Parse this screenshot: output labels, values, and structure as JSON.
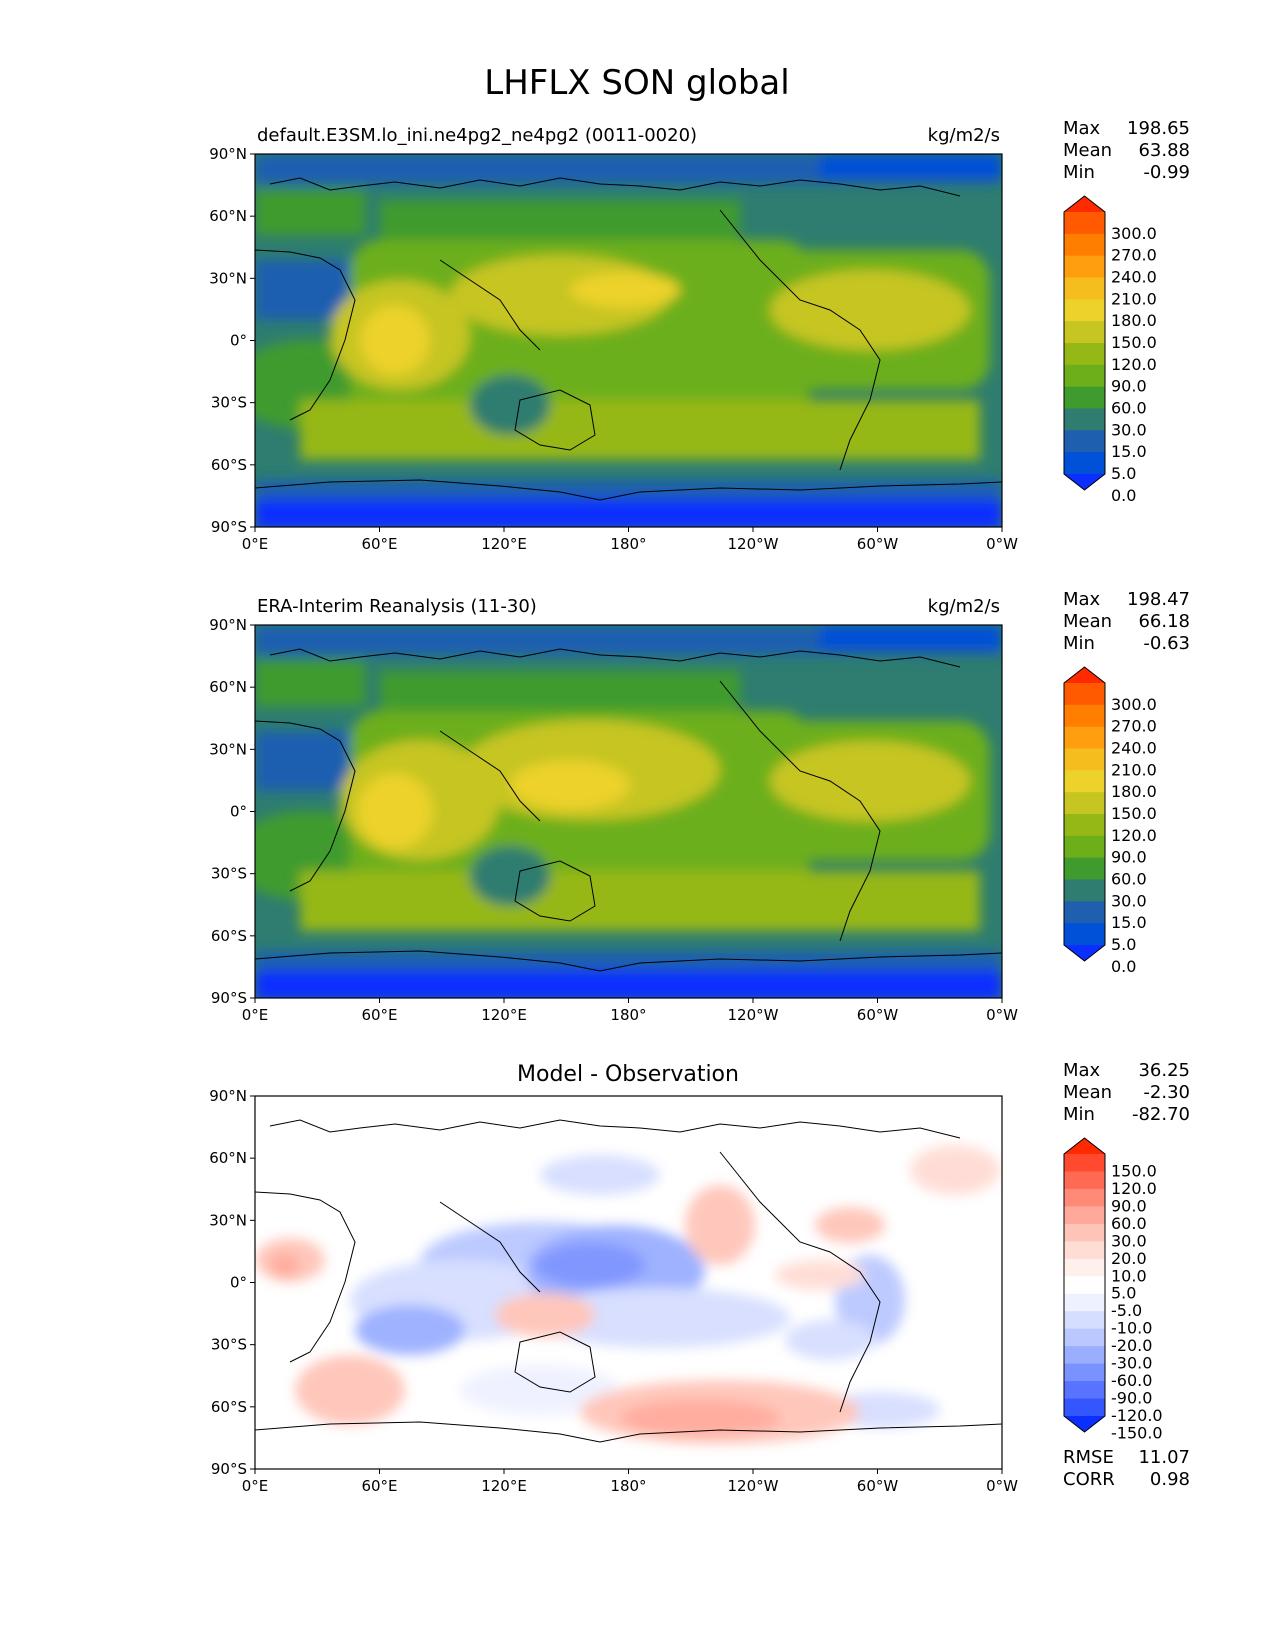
{
  "figure": {
    "title": "LHFLX SON global"
  },
  "chart_data": [
    {
      "type": "heatmap",
      "title": "default.E3SM.lo_ini.ne4pg2_ne4pg2 (0011-0020)",
      "units": "kg/m2/s",
      "x_ticks": [
        "0°E",
        "60°E",
        "120°E",
        "180°",
        "120°W",
        "60°W",
        "0°W"
      ],
      "y_ticks": [
        "90°N",
        "60°N",
        "30°N",
        "0°",
        "30°S",
        "60°S",
        "90°S"
      ],
      "xlim": [
        0,
        360
      ],
      "ylim": [
        -90,
        90
      ],
      "stats": [
        {
          "label": "Max",
          "value": "198.65"
        },
        {
          "label": "Mean",
          "value": "63.88"
        },
        {
          "label": "Min",
          "value": "-0.99"
        }
      ],
      "colorbar": {
        "labels": [
          "300.0",
          "270.0",
          "240.0",
          "210.0",
          "180.0",
          "150.0",
          "120.0",
          "90.0",
          "60.0",
          "30.0",
          "15.0",
          "5.0",
          "0.0"
        ],
        "colors": [
          "#ff2a00",
          "#ff5a00",
          "#ff7e00",
          "#ff9f10",
          "#f6bd1e",
          "#ecd22a",
          "#c6c521",
          "#96b817",
          "#6caf1a",
          "#3f9b2e",
          "#2e7d70",
          "#1f5fb0",
          "#0050d8",
          "#0a2fff"
        ]
      }
    },
    {
      "type": "heatmap",
      "title": "ERA-Interim Reanalysis (11-30)",
      "units": "kg/m2/s",
      "x_ticks": [
        "0°E",
        "60°E",
        "120°E",
        "180°",
        "120°W",
        "60°W",
        "0°W"
      ],
      "y_ticks": [
        "90°N",
        "60°N",
        "30°N",
        "0°",
        "30°S",
        "60°S",
        "90°S"
      ],
      "xlim": [
        0,
        360
      ],
      "ylim": [
        -90,
        90
      ],
      "stats": [
        {
          "label": "Max",
          "value": "198.47"
        },
        {
          "label": "Mean",
          "value": "66.18"
        },
        {
          "label": "Min",
          "value": "-0.63"
        }
      ],
      "colorbar": {
        "labels": [
          "300.0",
          "270.0",
          "240.0",
          "210.0",
          "180.0",
          "150.0",
          "120.0",
          "90.0",
          "60.0",
          "30.0",
          "15.0",
          "5.0",
          "0.0"
        ],
        "colors": [
          "#ff2a00",
          "#ff5a00",
          "#ff7e00",
          "#ff9f10",
          "#f6bd1e",
          "#ecd22a",
          "#c6c521",
          "#96b817",
          "#6caf1a",
          "#3f9b2e",
          "#2e7d70",
          "#1f5fb0",
          "#0050d8",
          "#0a2fff"
        ]
      }
    },
    {
      "type": "heatmap",
      "title": "Model - Observation",
      "x_ticks": [
        "0°E",
        "60°E",
        "120°E",
        "180°",
        "120°W",
        "60°W",
        "0°W"
      ],
      "y_ticks": [
        "90°N",
        "60°N",
        "30°N",
        "0°",
        "30°S",
        "60°S",
        "90°S"
      ],
      "xlim": [
        0,
        360
      ],
      "ylim": [
        -90,
        90
      ],
      "stats": [
        {
          "label": "Max",
          "value": "36.25"
        },
        {
          "label": "Mean",
          "value": "-2.30"
        },
        {
          "label": "Min",
          "value": "-82.70"
        }
      ],
      "metrics": [
        {
          "label": "RMSE",
          "value": "11.07"
        },
        {
          "label": "CORR",
          "value": "0.98"
        }
      ],
      "colorbar": {
        "labels": [
          "150.0",
          "120.0",
          "90.0",
          "60.0",
          "30.0",
          "20.0",
          "10.0",
          "5.0",
          "-5.0",
          "-10.0",
          "-20.0",
          "-30.0",
          "-60.0",
          "-90.0",
          "-120.0",
          "-150.0"
        ],
        "colors": [
          "#ff2a00",
          "#ff4a30",
          "#ff6a55",
          "#ff8a78",
          "#ffa99a",
          "#ffc4b8",
          "#ffdcd4",
          "#fff0ec",
          "#ffffff",
          "#eef1ff",
          "#d6deff",
          "#bac8ff",
          "#9aaeff",
          "#7a92ff",
          "#5874ff",
          "#3456ff",
          "#0a2fff"
        ]
      }
    }
  ]
}
